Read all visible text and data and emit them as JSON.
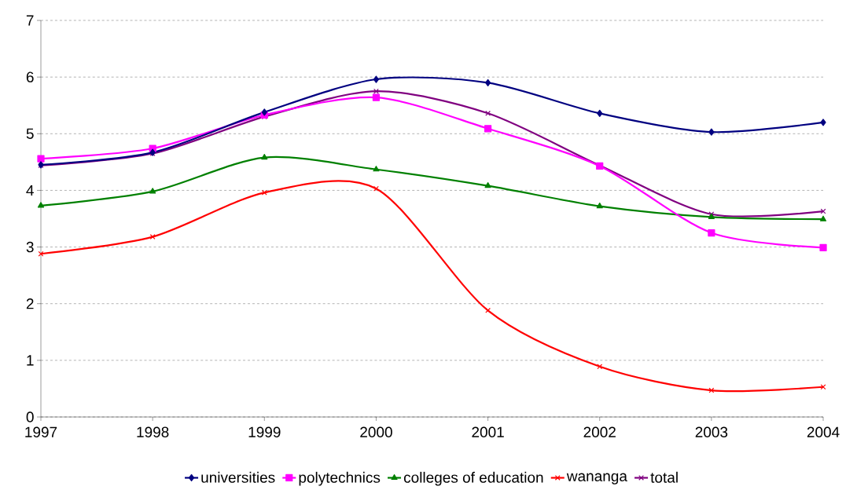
{
  "chart_data": {
    "type": "line",
    "x": [
      1997,
      1998,
      1999,
      2000,
      2001,
      2002,
      2003,
      2004
    ],
    "xlim": [
      1997,
      2004
    ],
    "xticks": [
      1997,
      1998,
      1999,
      2000,
      2001,
      2002,
      2003,
      2004
    ],
    "ylim": [
      0,
      7
    ],
    "yticks": [
      0,
      1,
      2,
      3,
      4,
      5,
      6,
      7
    ],
    "grid": "y",
    "legend": "bottom",
    "line_style": "solid",
    "series": [
      {
        "name": "universities",
        "color": "#000080",
        "marker": "diamond",
        "values": [
          4.45,
          4.67,
          5.38,
          5.96,
          5.9,
          5.36,
          5.03,
          5.2
        ]
      },
      {
        "name": "polytechnics",
        "color": "#ff00ff",
        "marker": "square",
        "values": [
          4.56,
          4.74,
          5.33,
          5.64,
          5.09,
          4.43,
          3.25,
          2.99
        ]
      },
      {
        "name": "colleges of education",
        "color": "#008000",
        "marker": "triangle",
        "values": [
          3.73,
          3.98,
          4.58,
          4.37,
          4.08,
          3.72,
          3.53,
          3.49
        ]
      },
      {
        "name": "wananga",
        "color": "#ff0000",
        "marker": "cross",
        "values": [
          2.88,
          3.18,
          3.96,
          4.03,
          1.88,
          0.89,
          0.47,
          0.53
        ]
      },
      {
        "name": "total",
        "color": "#800080",
        "marker": "cross",
        "values": [
          4.44,
          4.65,
          5.3,
          5.75,
          5.36,
          4.44,
          3.58,
          3.63
        ]
      }
    ]
  }
}
